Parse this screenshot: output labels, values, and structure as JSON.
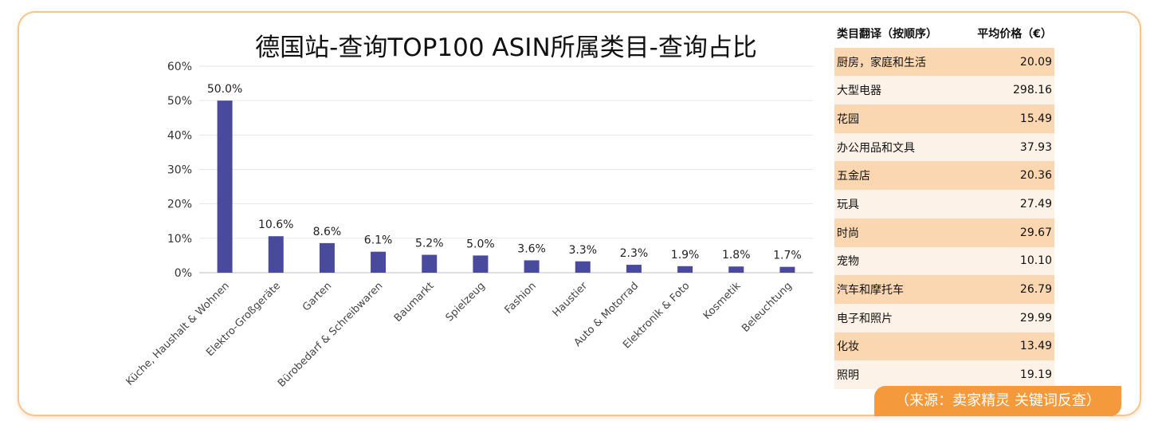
{
  "chart_data": {
    "type": "bar",
    "title": "德国站-查询TOP100 ASIN所属类目-查询占比",
    "categories": [
      "Küche, Haushalt & Wohnen",
      "Elektro-Großgeräte",
      "Garten",
      "Bürobedarf & Schreibwaren",
      "Baumarkt",
      "Spielzeug",
      "Fashion",
      "Haustier",
      "Auto & Motorrad",
      "Elektronik & Foto",
      "Kosmetik",
      "Beleuchtung"
    ],
    "values": [
      50.0,
      10.6,
      8.6,
      6.1,
      5.2,
      5.0,
      3.6,
      3.3,
      2.3,
      1.9,
      1.8,
      1.7
    ],
    "data_labels": [
      "50.0%",
      "10.6%",
      "8.6%",
      "6.1%",
      "5.2%",
      "5.0%",
      "3.6%",
      "3.3%",
      "2.3%",
      "1.9%",
      "1.8%",
      "1.7%"
    ],
    "y_ticks": [
      "0%",
      "10%",
      "20%",
      "30%",
      "40%",
      "50%",
      "60%"
    ],
    "ylim": [
      0,
      60
    ],
    "grid": true,
    "bar_color": "#4a4a9c"
  },
  "table": {
    "headers": [
      "类目翻译（按顺序）",
      "平均价格（€）"
    ],
    "rows": [
      {
        "name": "厨房，家庭和生活",
        "price": "20.09"
      },
      {
        "name": "大型电器",
        "price": "298.16"
      },
      {
        "name": "花园",
        "price": "15.49"
      },
      {
        "name": "办公用品和文具",
        "price": "37.93"
      },
      {
        "name": "五金店",
        "price": "20.36"
      },
      {
        "name": "玩具",
        "price": "27.49"
      },
      {
        "name": "时尚",
        "price": "29.67"
      },
      {
        "name": "宠物",
        "price": "10.10"
      },
      {
        "name": "汽车和摩托车",
        "price": "26.79"
      },
      {
        "name": "电子和照片",
        "price": "29.99"
      },
      {
        "name": "化妆",
        "price": "13.49"
      },
      {
        "name": "照明",
        "price": "19.19"
      }
    ]
  },
  "source_note": "（来源：卖家精灵 关键词反查）",
  "colors": {
    "border": "#f6c48c",
    "accent": "#f49a3d",
    "row_odd": "#fbd7b1",
    "row_even": "#fdf2e8"
  }
}
